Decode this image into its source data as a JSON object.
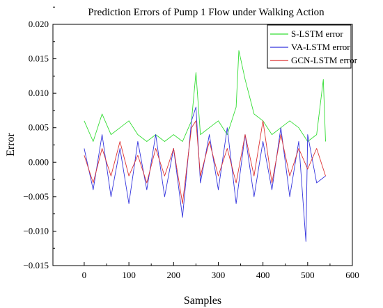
{
  "chart_data": {
    "type": "line",
    "title": "Prediction Errors of Pump 1 Flow under Walking Action",
    "xlabel": "Samples",
    "ylabel": "Error",
    "xlim": [
      -70,
      600
    ],
    "ylim": [
      -0.015,
      0.02
    ],
    "x_ticks": [
      0,
      100,
      200,
      300,
      400,
      500,
      600
    ],
    "x_tick_labels": [
      "0",
      "100",
      "200",
      "300",
      "400",
      "500",
      "600"
    ],
    "y_ticks": [
      -0.015,
      -0.01,
      -0.005,
      0.0,
      0.005,
      0.01,
      0.015,
      0.02
    ],
    "y_tick_labels": [
      "−0.015",
      "−0.010",
      "−0.005",
      "0.000",
      "0.005",
      "0.010",
      "0.015",
      "0.020"
    ],
    "legend_position": "top-right",
    "grid": false,
    "num_samples": 540,
    "series": [
      {
        "name": "S-LSTM error",
        "color": "#33dd33",
        "x": [
          0,
          20,
          40,
          60,
          80,
          100,
          120,
          140,
          160,
          180,
          200,
          220,
          240,
          250,
          260,
          280,
          300,
          320,
          340,
          346,
          360,
          380,
          400,
          420,
          440,
          460,
          480,
          500,
          520,
          535,
          540
        ],
        "y": [
          0.006,
          0.003,
          0.007,
          0.004,
          0.005,
          0.006,
          0.004,
          0.003,
          0.004,
          0.003,
          0.004,
          0.003,
          0.006,
          0.013,
          0.004,
          0.005,
          0.006,
          0.004,
          0.008,
          0.0162,
          0.012,
          0.007,
          0.006,
          0.004,
          0.005,
          0.006,
          0.005,
          0.003,
          0.004,
          0.012,
          0.003
        ]
      },
      {
        "name": "VA-LSTM error",
        "color": "#3333dd",
        "x": [
          0,
          20,
          40,
          60,
          80,
          100,
          120,
          140,
          160,
          180,
          200,
          220,
          240,
          250,
          260,
          280,
          300,
          320,
          340,
          360,
          380,
          400,
          420,
          440,
          460,
          480,
          496,
          500,
          520,
          540
        ],
        "y": [
          0.002,
          -0.004,
          0.004,
          -0.005,
          0.002,
          -0.006,
          0.003,
          -0.004,
          0.004,
          -0.005,
          0.002,
          -0.008,
          0.006,
          0.008,
          -0.003,
          0.004,
          -0.004,
          0.005,
          -0.006,
          0.004,
          -0.005,
          0.003,
          -0.004,
          0.005,
          -0.005,
          0.003,
          -0.0115,
          0.004,
          -0.003,
          -0.002
        ]
      },
      {
        "name": "GCN-LSTM error",
        "color": "#dd3333",
        "x": [
          0,
          20,
          40,
          60,
          80,
          100,
          120,
          140,
          160,
          180,
          200,
          220,
          240,
          250,
          260,
          280,
          300,
          320,
          340,
          360,
          380,
          400,
          420,
          440,
          460,
          480,
          500,
          520,
          540
        ],
        "y": [
          0.001,
          -0.003,
          0.002,
          -0.002,
          0.003,
          -0.002,
          0.001,
          -0.003,
          0.002,
          -0.002,
          0.002,
          -0.006,
          0.005,
          0.006,
          -0.002,
          0.003,
          -0.002,
          0.002,
          -0.003,
          0.004,
          -0.002,
          0.006,
          -0.003,
          0.004,
          -0.002,
          0.002,
          -0.001,
          0.002,
          -0.002
        ]
      }
    ]
  }
}
